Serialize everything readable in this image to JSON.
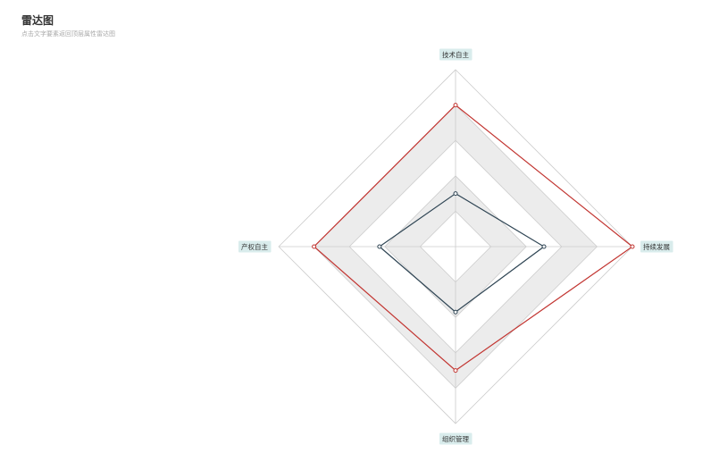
{
  "header": {
    "title": "雷达图",
    "subtitle": "点击文字要素返回顶层属性雷达图"
  },
  "colors": {
    "split_fill_a": "#ffffff",
    "split_fill_b": "#ececec",
    "grid_line": "#cccccc",
    "label_bg": "#d9ecec",
    "series_a": "#c23531",
    "series_b": "#2f4554"
  },
  "chart_data": {
    "type": "radar",
    "title": "雷达图",
    "subtitle": "点击文字要素返回顶层属性雷达图",
    "indicators": [
      {
        "name": "技术自主",
        "max": 100
      },
      {
        "name": "持续发展",
        "max": 100
      },
      {
        "name": "组织管理",
        "max": 100
      },
      {
        "name": "产权自主",
        "max": 100
      }
    ],
    "split_number": 5,
    "series": [
      {
        "values": [
          80,
          100,
          70,
          80
        ]
      },
      {
        "values": [
          30,
          50,
          37,
          43
        ]
      }
    ]
  }
}
